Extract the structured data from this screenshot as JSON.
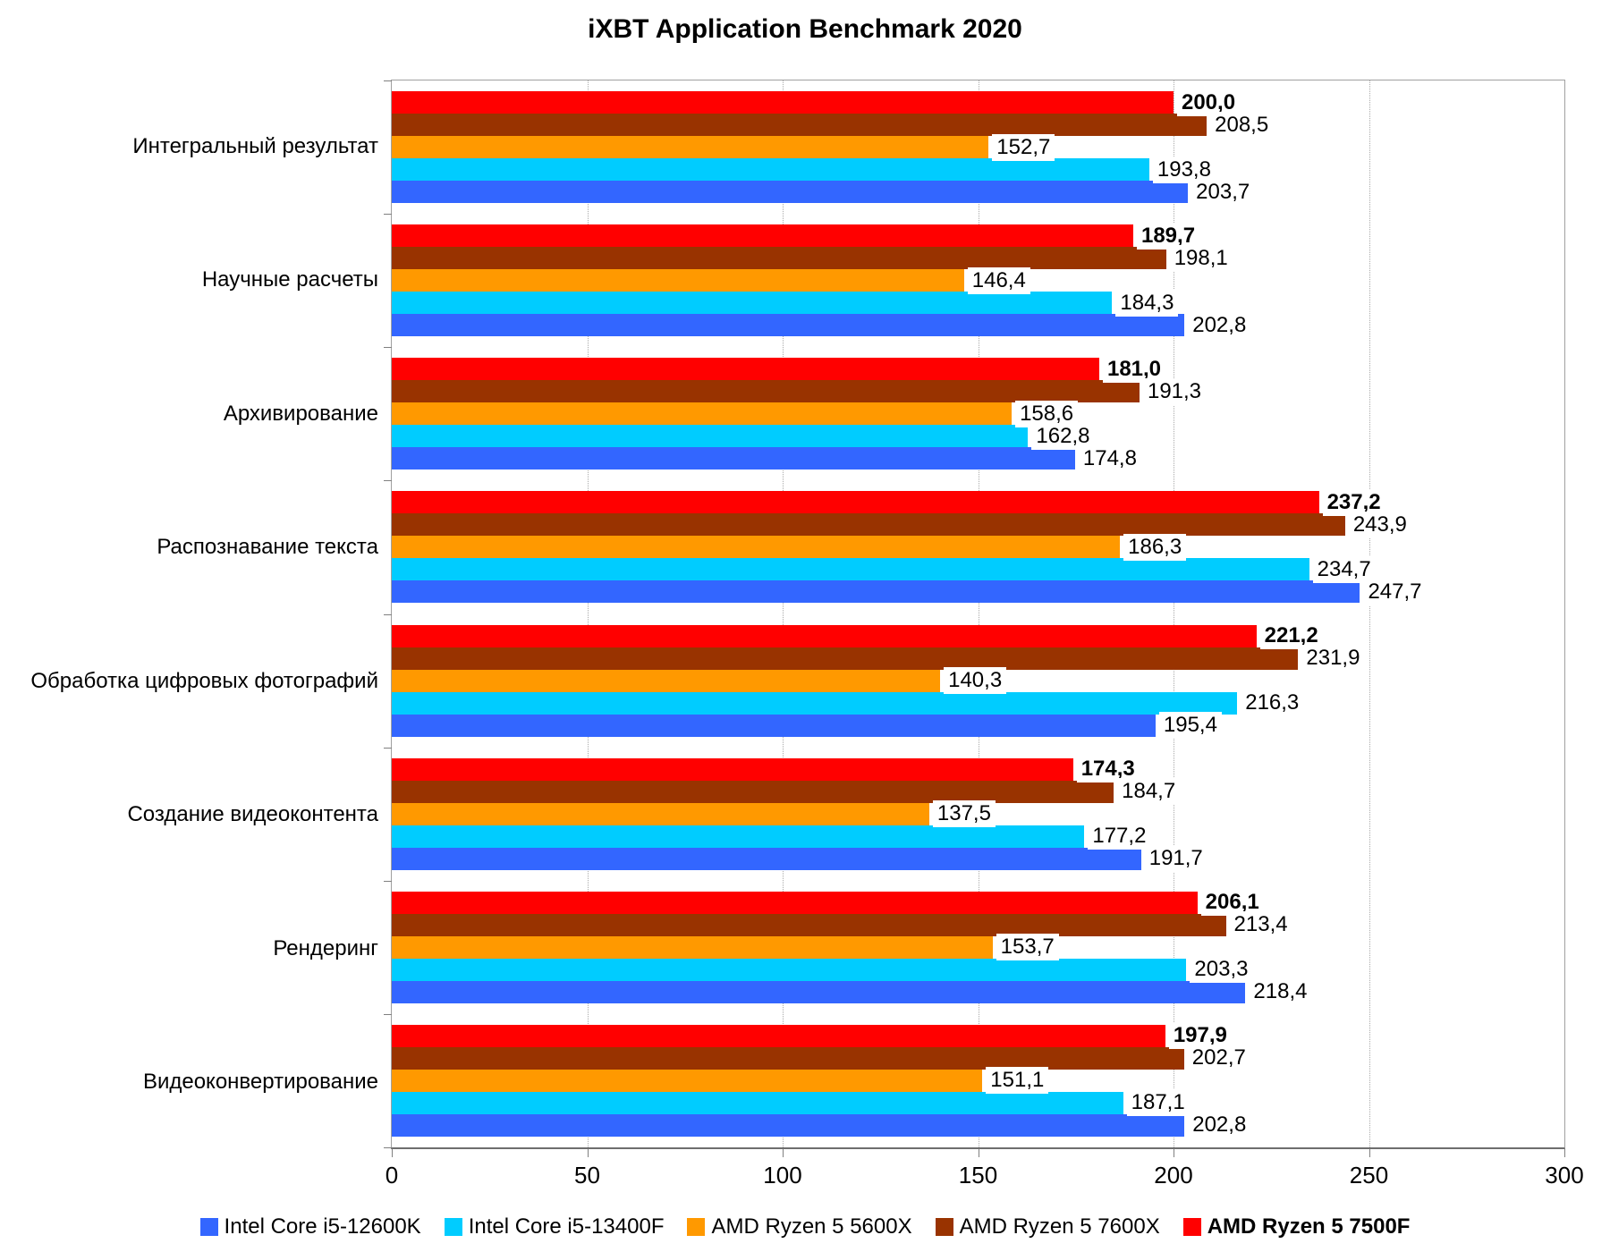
{
  "chart": {
    "title": "iXBT Application Benchmark 2020"
  },
  "chart_data": {
    "type": "bar",
    "orientation": "horizontal",
    "title": "iXBT Application Benchmark 2020",
    "categories": [
      "Интегральный результат",
      "Научные расчеты",
      "Архивирование",
      "Распознавание текста",
      "Обработка цифровых фотографий",
      "Создание видеоконтента",
      "Рендеринг",
      "Видеоконвертирование"
    ],
    "series": [
      {
        "name": "Intel Core i5-12600K",
        "color": "#3366FF",
        "bold": false,
        "values": [
          203.7,
          202.8,
          174.8,
          247.7,
          195.4,
          191.7,
          218.4,
          202.8
        ]
      },
      {
        "name": "Intel Core i5-13400F",
        "color": "#00CCFF",
        "bold": false,
        "values": [
          193.8,
          184.3,
          162.8,
          234.7,
          216.3,
          177.2,
          203.3,
          187.1
        ]
      },
      {
        "name": "AMD Ryzen 5 5600X",
        "color": "#FF9900",
        "bold": false,
        "values": [
          152.7,
          146.4,
          158.6,
          186.3,
          140.3,
          137.5,
          153.7,
          151.1
        ]
      },
      {
        "name": "AMD Ryzen 5 7600X",
        "color": "#993300",
        "bold": false,
        "values": [
          208.5,
          198.1,
          191.3,
          243.9,
          231.9,
          184.7,
          213.4,
          202.7
        ]
      },
      {
        "name": "AMD Ryzen 5 7500F",
        "color": "#FF0000",
        "bold": true,
        "values": [
          200.0,
          189.7,
          181.0,
          237.2,
          221.2,
          174.3,
          206.1,
          197.9
        ]
      }
    ],
    "bar_order_top_to_bottom_in_group": "reverse of series list (AMD Ryzen 5 7500F on top)",
    "xlabel": "",
    "ylabel": "",
    "xlim": [
      0,
      300
    ],
    "xticks": [
      0,
      50,
      100,
      150,
      200,
      250,
      300
    ],
    "grid": "vertical dotted gridlines at each 50-unit tick",
    "legend_position": "bottom",
    "value_labels": "shown at bar ends, decimal comma, one decimal place"
  }
}
